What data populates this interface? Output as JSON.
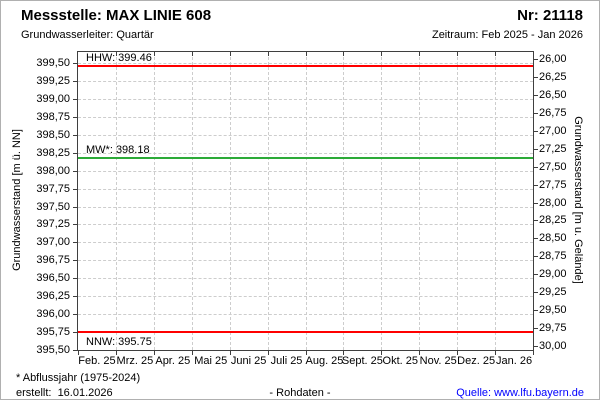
{
  "header": {
    "title": "Messstelle: MAX LINIE 608",
    "station_number": "Nr: 21118",
    "aquifer": "Grundwasserleiter: Quartär",
    "period": "Zeitraum: Feb 2025 - Jan 2026"
  },
  "chart_data": {
    "type": "line",
    "grid": true,
    "legend_position": "none",
    "series": [],
    "x_axis": {
      "categories": [
        "Feb. 25",
        "Mrz. 25",
        "Apr. 25",
        "Mai 25",
        "Juni 25",
        "Juli 25",
        "Aug. 25",
        "Sept. 25",
        "Okt. 25",
        "Nov. 25",
        "Dez. 25",
        "Jan. 26"
      ]
    },
    "left_axis": {
      "label": "Grundwasserstand [m ü. NN]",
      "range": [
        395.5,
        399.5
      ],
      "tick_step": 0.25,
      "ticks": [
        "399,50",
        "399,25",
        "399,00",
        "398,75",
        "398,50",
        "398,25",
        "398,00",
        "397,75",
        "397,50",
        "397,25",
        "397,00",
        "396,75",
        "396,50",
        "396,25",
        "396,00",
        "395,75",
        "395,50"
      ]
    },
    "right_axis": {
      "label": "Grundwasserstand [m u. Gelände]",
      "range": [
        26.0,
        30.0
      ],
      "tick_step": 0.25,
      "inverted": true,
      "ticks": [
        "26,00",
        "26,25",
        "26,50",
        "26,75",
        "27,00",
        "27,25",
        "27,50",
        "27,75",
        "28,00",
        "28,25",
        "28,50",
        "28,75",
        "29,00",
        "29,25",
        "29,50",
        "29,75",
        "30,00"
      ]
    },
    "reference_lines": [
      {
        "id": "hhw",
        "label": "HHW: 399.46",
        "value": 399.46,
        "color": "#ff0000",
        "label_side": "above"
      },
      {
        "id": "mw",
        "label": "MW*: 398.18",
        "value": 398.18,
        "color": "#2caa38",
        "label_side": "above"
      },
      {
        "id": "nnw",
        "label": "NNW: 395.75",
        "value": 395.75,
        "color": "#ff0000",
        "label_side": "below"
      }
    ]
  },
  "footer": {
    "note": "* Abflussjahr (1975-2024)",
    "created": "erstellt:  16.01.2026",
    "data_type": "- Rohdaten -",
    "source": "Quelle: www.lfu.bayern.de",
    "source_color": "#0000ff"
  }
}
